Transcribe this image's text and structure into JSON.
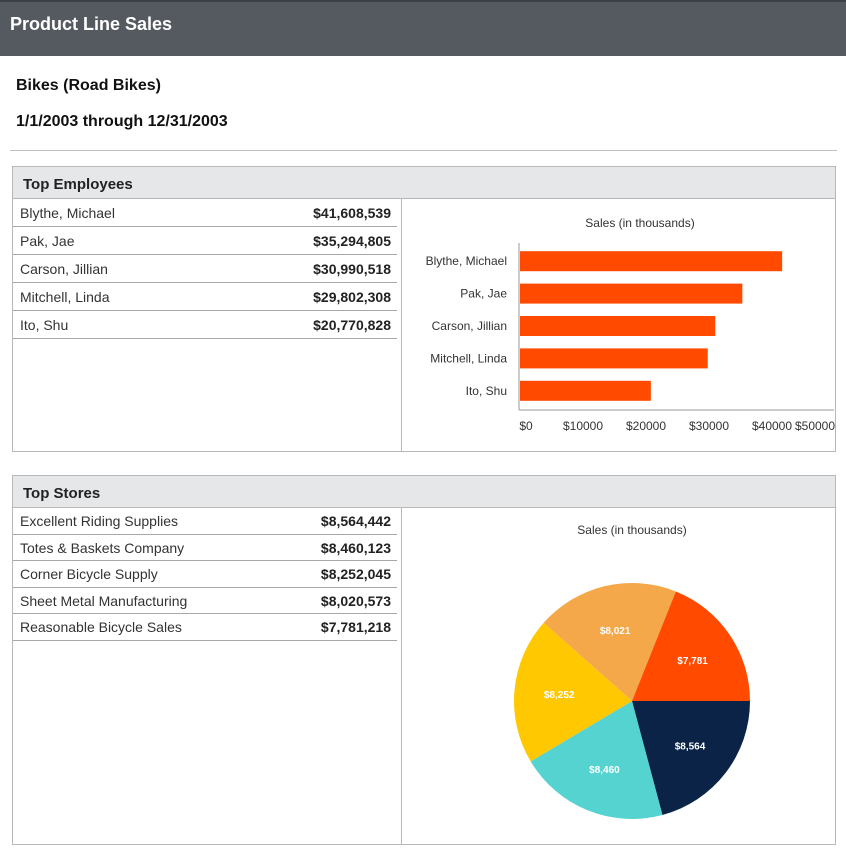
{
  "header": {
    "title": "Product Line Sales"
  },
  "report": {
    "category": "Bikes (Road Bikes)",
    "date_range": "1/1/2003 through 12/31/2003"
  },
  "top_employees": {
    "heading": "Top Employees",
    "rows": [
      {
        "name": "Blythe, Michael",
        "sales": "$41,608,539"
      },
      {
        "name": "Pak, Jae",
        "sales": "$35,294,805"
      },
      {
        "name": "Carson, Jillian",
        "sales": "$30,990,518"
      },
      {
        "name": "Mitchell, Linda",
        "sales": "$29,802,308"
      },
      {
        "name": "Ito, Shu",
        "sales": "$20,770,828"
      }
    ]
  },
  "top_stores": {
    "heading": "Top Stores",
    "rows": [
      {
        "name": "Excellent Riding Supplies",
        "sales": "$8,564,442"
      },
      {
        "name": "Totes & Baskets Company",
        "sales": "$8,460,123"
      },
      {
        "name": "Corner Bicycle Supply",
        "sales": "$8,252,045"
      },
      {
        "name": "Sheet Metal Manufacturing",
        "sales": "$8,020,573"
      },
      {
        "name": "Reasonable Bicycle Sales",
        "sales": "$7,781,218"
      }
    ]
  },
  "chart_data": [
    {
      "type": "bar",
      "orientation": "horizontal",
      "title": "Sales (in thousands)",
      "categories": [
        "Blythe, Michael",
        "Pak, Jae",
        "Carson, Jillian",
        "Mitchell, Linda",
        "Ito, Shu"
      ],
      "values": [
        41609,
        35295,
        30991,
        29802,
        20771
      ],
      "x_ticks": [
        "$0",
        "$10000",
        "$20000",
        "$30000",
        "$40000",
        "$50000"
      ],
      "xlim": [
        0,
        50000
      ],
      "grid": false,
      "bar_color": "#ff4a00"
    },
    {
      "type": "pie",
      "title": "Sales (in thousands)",
      "slices": [
        {
          "label": "$8,564",
          "value": 8564,
          "color": "#0a2347"
        },
        {
          "label": "$8,460",
          "value": 8460,
          "color": "#55d3d1"
        },
        {
          "label": "$8,252",
          "value": 8252,
          "color": "#ffc800"
        },
        {
          "label": "$8,021",
          "value": 8021,
          "color": "#f5a84a"
        },
        {
          "label": "$7,781",
          "value": 7781,
          "color": "#ff4a00"
        }
      ]
    }
  ]
}
